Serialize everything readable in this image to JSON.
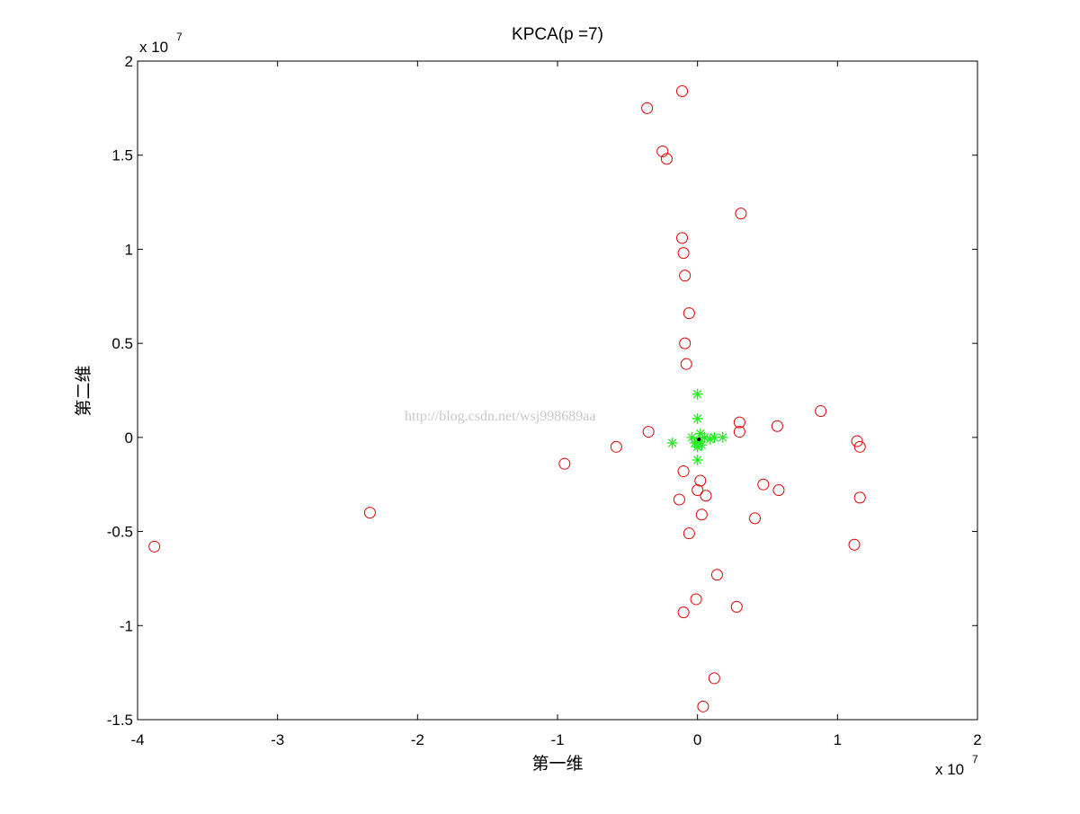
{
  "chart_data": {
    "type": "scatter",
    "title": "KPCA(p =7)",
    "x_label": "第一维",
    "y_label": "第二维",
    "x_multiplier": {
      "base": "x 10",
      "exponent": "7"
    },
    "y_multiplier": {
      "base": "x 10",
      "exponent": "7"
    },
    "watermark": "http://blog.csdn.net/wsj998689aa",
    "xlim": [
      -4,
      2
    ],
    "ylim": [
      -1.5,
      2
    ],
    "xticks": [
      -4,
      -3,
      -2,
      -1,
      0,
      1,
      2
    ],
    "yticks": [
      -1.5,
      -1,
      -0.5,
      0,
      0.5,
      1,
      1.5,
      2
    ],
    "grid": false,
    "series": [
      {
        "color": "#e00000",
        "marker": "circle",
        "x": [
          -0.11,
          -0.36,
          -0.25,
          -0.22,
          0.31,
          -0.11,
          -0.1,
          -0.09,
          -0.06,
          -0.09,
          -0.08,
          0.88,
          0.3,
          0.57,
          0.3,
          -0.35,
          1.14,
          1.16,
          -0.58,
          -0.95,
          -0.1,
          0.02,
          0,
          0.47,
          0.58,
          0.06,
          -0.13,
          1.16,
          0.03,
          0.41,
          -2.34,
          -0.06,
          1.12,
          -3.88,
          0.14,
          -0.01,
          -0.1,
          0.28,
          0.12,
          0.04
        ],
        "values": [
          1.84,
          1.75,
          1.52,
          1.48,
          1.19,
          1.06,
          0.98,
          0.86,
          0.66,
          0.5,
          0.39,
          0.14,
          0.08,
          0.06,
          0.03,
          0.03,
          -0.02,
          -0.05,
          -0.05,
          -0.14,
          -0.18,
          -0.23,
          -0.28,
          -0.25,
          -0.28,
          -0.31,
          -0.33,
          -0.32,
          -0.41,
          -0.43,
          -0.4,
          -0.51,
          -0.57,
          -0.58,
          -0.73,
          -0.86,
          -0.93,
          -0.9,
          -1.28,
          -1.43
        ]
      },
      {
        "color": "#22ee22",
        "marker": "star",
        "x": [
          0,
          0,
          -0.18,
          0,
          0.18,
          -0.04,
          0.05,
          0.01,
          0,
          0.02,
          0.09,
          0.12,
          -0.02,
          0.03
        ],
        "values": [
          0.23,
          0.1,
          -0.03,
          -0.12,
          0,
          0,
          0,
          -0.02,
          -0.05,
          0.02,
          -0.01,
          0,
          -0.03,
          -0.04
        ]
      },
      {
        "color": "#000000",
        "marker": "dot",
        "x": [
          0.01
        ],
        "values": [
          -0.01
        ]
      }
    ]
  }
}
